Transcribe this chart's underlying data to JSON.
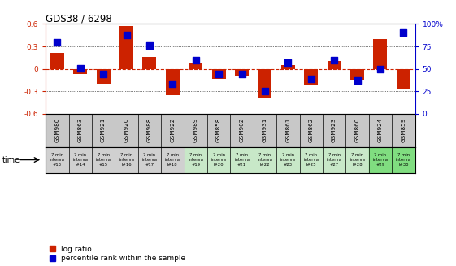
{
  "title": "GDS38 / 6298",
  "samples": [
    "GSM980",
    "GSM863",
    "GSM921",
    "GSM920",
    "GSM988",
    "GSM922",
    "GSM989",
    "GSM858",
    "GSM902",
    "GSM931",
    "GSM861",
    "GSM862",
    "GSM923",
    "GSM860",
    "GSM924",
    "GSM859"
  ],
  "time_labels_line1": [
    "7 min",
    "7 min",
    "7 min",
    "7 min",
    "7 min",
    "7 min",
    "7 min",
    "7 min",
    "7 min",
    "7 min",
    "7 min",
    "7 min",
    "7 min",
    "7 min",
    "7 min",
    "7 min"
  ],
  "time_labels_line2": [
    "interva",
    "interva",
    "interva",
    "interva",
    "interva",
    "interva",
    "interva",
    "interva",
    "interva",
    "interva",
    "interva",
    "interva",
    "interva",
    "interva",
    "interva",
    "interva"
  ],
  "time_labels_line3": [
    "#13",
    "l#14",
    "#15",
    "l#16",
    "#17",
    "l#18",
    "#19",
    "l#20",
    "#21",
    "l#22",
    "#23",
    "l#25",
    "#27",
    "l#28",
    "#29",
    "l#30"
  ],
  "log_ratio": [
    0.21,
    -0.07,
    -0.2,
    0.57,
    0.16,
    -0.35,
    0.07,
    -0.13,
    -0.1,
    -0.38,
    0.05,
    -0.22,
    0.1,
    -0.15,
    0.4,
    -0.28
  ],
  "percentile": [
    80,
    51,
    44,
    88,
    76,
    33,
    60,
    44,
    44,
    25,
    57,
    39,
    60,
    37,
    50,
    90
  ],
  "ylim_left": [
    -0.6,
    0.6
  ],
  "ylim_right": [
    0,
    100
  ],
  "yticks_left": [
    -0.6,
    -0.3,
    0.0,
    0.3,
    0.6
  ],
  "yticks_right": [
    0,
    25,
    50,
    75,
    100
  ],
  "ytick_labels_right": [
    "0",
    "25",
    "50",
    "75",
    "100%"
  ],
  "bar_color": "#cc2200",
  "dot_color": "#0000cc",
  "hline_color": "#cc2200",
  "bg_color": "#ffffff",
  "header_bg": "#c8c8c8",
  "time_bg_colors": [
    "#d0d0d0",
    "#d0d0d0",
    "#d0d0d0",
    "#d0d0d0",
    "#d0d0d0",
    "#d0d0d0",
    "#c8e8c8",
    "#c8e8c8",
    "#c8e8c8",
    "#c8e8c8",
    "#c8e8c8",
    "#c8e8c8",
    "#c8e8c8",
    "#c8e8c8",
    "#80dd80",
    "#80dd80"
  ],
  "legend_red": "log ratio",
  "legend_blue": "percentile rank within the sample",
  "bar_width": 0.6
}
